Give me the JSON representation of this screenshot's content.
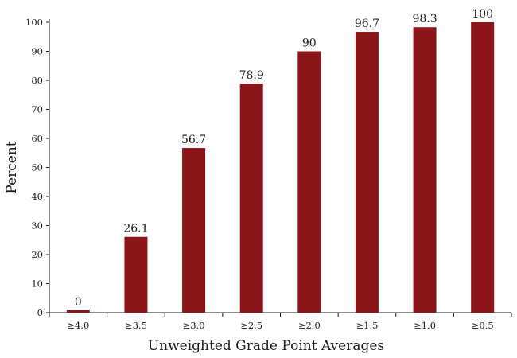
{
  "colors": {
    "bar": "#8b1519",
    "axis": "#1a1a1a"
  },
  "chart_data": {
    "type": "bar",
    "title": "",
    "xlabel": "Unweighted Grade Point Averages",
    "ylabel": "Percent",
    "ylim": [
      0,
      100
    ],
    "yticks": [
      0,
      10,
      20,
      30,
      40,
      50,
      60,
      70,
      80,
      90,
      100
    ],
    "grid": false,
    "legend": "none",
    "categories": [
      "≥4.0",
      "≥3.5",
      "≥3.0",
      "≥2.5",
      "≥2.0",
      "≥1.5",
      "≥1.0",
      "≥0.5"
    ],
    "values": [
      0,
      26.1,
      56.7,
      78.9,
      90,
      96.7,
      98.3,
      100
    ],
    "data_labels": [
      "0",
      "26.1",
      "56.7",
      "78.9",
      "90",
      "96.7",
      "98.3",
      "100"
    ]
  }
}
